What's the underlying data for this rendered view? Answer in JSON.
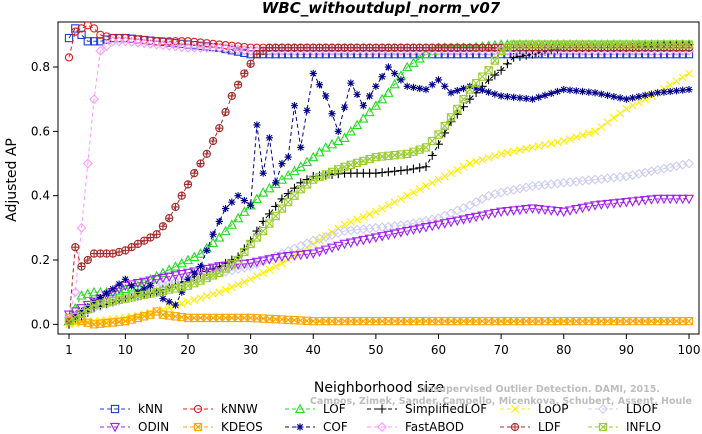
{
  "chart_data": {
    "type": "line",
    "title": "WBC_withoutdupl_norm_v07",
    "xlabel": "Neighborhood size",
    "ylabel": "Adjusted AP",
    "xlim": [
      1,
      100
    ],
    "ylim": [
      -0.03,
      0.94
    ],
    "xticks": [
      1,
      10,
      20,
      30,
      40,
      50,
      60,
      70,
      80,
      90,
      100
    ],
    "yticks": [
      0.0,
      0.2,
      0.4,
      0.6,
      0.8
    ],
    "ytick_labels": [
      "0.0",
      "0.2",
      "0.4",
      "0.6",
      "0.8"
    ],
    "grid": false,
    "legend_position": "bottom",
    "watermark": [
      "Unsupervised Outlier Detection. DAMI, 2015.",
      "Campos, Zimek, Sander, Campello, Micenkova, Schubert, Assent, Houle"
    ],
    "series": [
      {
        "name": "kNN",
        "color": "#1a3fd0",
        "marker": "square",
        "line": "dash",
        "points": [
          [
            1,
            0.89
          ],
          [
            2,
            0.92
          ],
          [
            3,
            0.9
          ],
          [
            4,
            0.88
          ],
          [
            6,
            0.88
          ],
          [
            8,
            0.89
          ],
          [
            10,
            0.89
          ],
          [
            15,
            0.88
          ],
          [
            20,
            0.87
          ],
          [
            25,
            0.86
          ],
          [
            30,
            0.84
          ],
          [
            40,
            0.84
          ],
          [
            50,
            0.84
          ],
          [
            60,
            0.84
          ],
          [
            70,
            0.84
          ],
          [
            80,
            0.84
          ],
          [
            90,
            0.84
          ],
          [
            100,
            0.84
          ]
        ]
      },
      {
        "name": "kNNW",
        "color": "#dd2020",
        "marker": "circle",
        "line": "dash",
        "points": [
          [
            1,
            0.83
          ],
          [
            2,
            0.91
          ],
          [
            3,
            0.92
          ],
          [
            4,
            0.93
          ],
          [
            5,
            0.92
          ],
          [
            6,
            0.9
          ],
          [
            8,
            0.89
          ],
          [
            10,
            0.89
          ],
          [
            15,
            0.88
          ],
          [
            20,
            0.88
          ],
          [
            25,
            0.87
          ],
          [
            30,
            0.86
          ],
          [
            40,
            0.86
          ],
          [
            50,
            0.86
          ],
          [
            60,
            0.86
          ],
          [
            70,
            0.86
          ],
          [
            80,
            0.86
          ],
          [
            90,
            0.86
          ],
          [
            100,
            0.86
          ]
        ]
      },
      {
        "name": "LOF",
        "color": "#22dd22",
        "marker": "triangle-up",
        "line": "dash",
        "points": [
          [
            1,
            0.01
          ],
          [
            3,
            0.09
          ],
          [
            5,
            0.1
          ],
          [
            8,
            0.1
          ],
          [
            10,
            0.11
          ],
          [
            12,
            0.12
          ],
          [
            15,
            0.15
          ],
          [
            18,
            0.18
          ],
          [
            20,
            0.2
          ],
          [
            22,
            0.22
          ],
          [
            25,
            0.27
          ],
          [
            28,
            0.33
          ],
          [
            30,
            0.37
          ],
          [
            32,
            0.41
          ],
          [
            35,
            0.45
          ],
          [
            38,
            0.49
          ],
          [
            40,
            0.52
          ],
          [
            42,
            0.55
          ],
          [
            45,
            0.58
          ],
          [
            48,
            0.64
          ],
          [
            50,
            0.68
          ],
          [
            52,
            0.72
          ],
          [
            55,
            0.8
          ],
          [
            58,
            0.84
          ],
          [
            60,
            0.86
          ],
          [
            65,
            0.86
          ],
          [
            70,
            0.87
          ],
          [
            75,
            0.87
          ],
          [
            80,
            0.87
          ],
          [
            90,
            0.87
          ],
          [
            100,
            0.87
          ]
        ]
      },
      {
        "name": "SimplifiedLOF",
        "color": "#000000",
        "marker": "plus",
        "line": "dash",
        "points": [
          [
            1,
            0.0
          ],
          [
            5,
            0.05
          ],
          [
            10,
            0.08
          ],
          [
            15,
            0.1
          ],
          [
            20,
            0.14
          ],
          [
            25,
            0.18
          ],
          [
            28,
            0.21
          ],
          [
            30,
            0.26
          ],
          [
            32,
            0.32
          ],
          [
            35,
            0.39
          ],
          [
            38,
            0.44
          ],
          [
            40,
            0.46
          ],
          [
            45,
            0.47
          ],
          [
            50,
            0.47
          ],
          [
            55,
            0.48
          ],
          [
            58,
            0.49
          ],
          [
            60,
            0.56
          ],
          [
            62,
            0.63
          ],
          [
            65,
            0.7
          ],
          [
            68,
            0.76
          ],
          [
            70,
            0.79
          ],
          [
            72,
            0.83
          ],
          [
            75,
            0.84
          ],
          [
            80,
            0.86
          ],
          [
            90,
            0.86
          ],
          [
            100,
            0.87
          ]
        ]
      },
      {
        "name": "LoOP",
        "color": "#ffee00",
        "marker": "x",
        "line": "dash",
        "points": [
          [
            1,
            0.0
          ],
          [
            5,
            0.01
          ],
          [
            10,
            0.02
          ],
          [
            15,
            0.04
          ],
          [
            20,
            0.07
          ],
          [
            25,
            0.1
          ],
          [
            30,
            0.14
          ],
          [
            35,
            0.19
          ],
          [
            40,
            0.25
          ],
          [
            45,
            0.31
          ],
          [
            50,
            0.35
          ],
          [
            55,
            0.4
          ],
          [
            60,
            0.45
          ],
          [
            65,
            0.5
          ],
          [
            70,
            0.53
          ],
          [
            75,
            0.55
          ],
          [
            80,
            0.57
          ],
          [
            85,
            0.6
          ],
          [
            90,
            0.67
          ],
          [
            95,
            0.72
          ],
          [
            100,
            0.78
          ]
        ]
      },
      {
        "name": "LDOF",
        "color": "#ccccf2",
        "marker": "diamond",
        "line": "dash",
        "points": [
          [
            1,
            0.02
          ],
          [
            5,
            0.05
          ],
          [
            10,
            0.08
          ],
          [
            15,
            0.12
          ],
          [
            20,
            0.14
          ],
          [
            25,
            0.16
          ],
          [
            30,
            0.18
          ],
          [
            35,
            0.22
          ],
          [
            40,
            0.26
          ],
          [
            45,
            0.29
          ],
          [
            50,
            0.3
          ],
          [
            55,
            0.31
          ],
          [
            60,
            0.33
          ],
          [
            65,
            0.37
          ],
          [
            68,
            0.4
          ],
          [
            70,
            0.41
          ],
          [
            75,
            0.43
          ],
          [
            80,
            0.44
          ],
          [
            85,
            0.45
          ],
          [
            90,
            0.46
          ],
          [
            95,
            0.48
          ],
          [
            100,
            0.5
          ]
        ]
      },
      {
        "name": "ODIN",
        "color": "#a020f0",
        "marker": "triangle-down",
        "line": "dash",
        "points": [
          [
            1,
            0.03
          ],
          [
            5,
            0.07
          ],
          [
            10,
            0.12
          ],
          [
            15,
            0.14
          ],
          [
            20,
            0.16
          ],
          [
            25,
            0.18
          ],
          [
            30,
            0.19
          ],
          [
            35,
            0.21
          ],
          [
            40,
            0.22
          ],
          [
            45,
            0.25
          ],
          [
            50,
            0.27
          ],
          [
            55,
            0.29
          ],
          [
            60,
            0.31
          ],
          [
            65,
            0.33
          ],
          [
            70,
            0.35
          ],
          [
            75,
            0.36
          ],
          [
            80,
            0.35
          ],
          [
            85,
            0.37
          ],
          [
            90,
            0.38
          ],
          [
            95,
            0.39
          ],
          [
            100,
            0.39
          ]
        ]
      },
      {
        "name": "KDEOS",
        "color": "#ffa500",
        "marker": "square-x",
        "line": "dash",
        "points": [
          [
            1,
            0.02
          ],
          [
            3,
            0.01
          ],
          [
            5,
            0.0
          ],
          [
            10,
            0.01
          ],
          [
            12,
            0.02
          ],
          [
            14,
            0.03
          ],
          [
            15,
            0.04
          ],
          [
            16,
            0.03
          ],
          [
            20,
            0.02
          ],
          [
            25,
            0.02
          ],
          [
            30,
            0.02
          ],
          [
            40,
            0.01
          ],
          [
            50,
            0.01
          ],
          [
            60,
            0.01
          ],
          [
            70,
            0.01
          ],
          [
            80,
            0.01
          ],
          [
            90,
            0.01
          ],
          [
            100,
            0.01
          ]
        ]
      },
      {
        "name": "COF",
        "color": "#00008b",
        "marker": "star",
        "line": "dash",
        "points": [
          [
            1,
            0.01
          ],
          [
            3,
            0.04
          ],
          [
            5,
            0.07
          ],
          [
            8,
            0.11
          ],
          [
            10,
            0.14
          ],
          [
            12,
            0.1
          ],
          [
            14,
            0.12
          ],
          [
            16,
            0.08
          ],
          [
            18,
            0.06
          ],
          [
            20,
            0.14
          ],
          [
            22,
            0.18
          ],
          [
            24,
            0.28
          ],
          [
            26,
            0.36
          ],
          [
            28,
            0.4
          ],
          [
            30,
            0.37
          ],
          [
            31,
            0.62
          ],
          [
            32,
            0.47
          ],
          [
            33,
            0.58
          ],
          [
            34,
            0.44
          ],
          [
            35,
            0.5
          ],
          [
            36,
            0.52
          ],
          [
            37,
            0.68
          ],
          [
            38,
            0.55
          ],
          [
            40,
            0.78
          ],
          [
            42,
            0.71
          ],
          [
            44,
            0.6
          ],
          [
            46,
            0.75
          ],
          [
            48,
            0.68
          ],
          [
            50,
            0.74
          ],
          [
            52,
            0.8
          ],
          [
            55,
            0.74
          ],
          [
            58,
            0.73
          ],
          [
            60,
            0.76
          ],
          [
            62,
            0.72
          ],
          [
            65,
            0.74
          ],
          [
            70,
            0.71
          ],
          [
            75,
            0.7
          ],
          [
            80,
            0.73
          ],
          [
            85,
            0.72
          ],
          [
            90,
            0.7
          ],
          [
            95,
            0.72
          ],
          [
            100,
            0.73
          ]
        ]
      },
      {
        "name": "FastABOD",
        "color": "#ff9aff",
        "marker": "diamond",
        "line": "dash",
        "points": [
          [
            1,
            0.02
          ],
          [
            2,
            0.1
          ],
          [
            3,
            0.3
          ],
          [
            4,
            0.5
          ],
          [
            5,
            0.7
          ],
          [
            6,
            0.85
          ],
          [
            8,
            0.88
          ],
          [
            10,
            0.88
          ],
          [
            15,
            0.87
          ],
          [
            20,
            0.86
          ],
          [
            25,
            0.86
          ],
          [
            30,
            0.85
          ],
          [
            40,
            0.85
          ],
          [
            50,
            0.85
          ],
          [
            60,
            0.85
          ],
          [
            70,
            0.85
          ],
          [
            80,
            0.85
          ],
          [
            90,
            0.85
          ],
          [
            100,
            0.85
          ]
        ]
      },
      {
        "name": "LDF",
        "color": "#a52a2a",
        "marker": "circle-plus",
        "line": "dash",
        "points": [
          [
            1,
            0.01
          ],
          [
            2,
            0.24
          ],
          [
            3,
            0.18
          ],
          [
            4,
            0.2
          ],
          [
            5,
            0.22
          ],
          [
            8,
            0.22
          ],
          [
            10,
            0.23
          ],
          [
            12,
            0.25
          ],
          [
            15,
            0.28
          ],
          [
            17,
            0.33
          ],
          [
            19,
            0.4
          ],
          [
            21,
            0.47
          ],
          [
            23,
            0.53
          ],
          [
            25,
            0.61
          ],
          [
            27,
            0.71
          ],
          [
            29,
            0.78
          ],
          [
            31,
            0.84
          ],
          [
            33,
            0.86
          ],
          [
            40,
            0.86
          ],
          [
            50,
            0.86
          ],
          [
            60,
            0.86
          ],
          [
            70,
            0.86
          ],
          [
            80,
            0.86
          ],
          [
            90,
            0.86
          ],
          [
            100,
            0.86
          ]
        ]
      },
      {
        "name": "INFLO",
        "color": "#9acd32",
        "marker": "square-x",
        "line": "dash",
        "points": [
          [
            1,
            0.01
          ],
          [
            5,
            0.06
          ],
          [
            10,
            0.08
          ],
          [
            15,
            0.1
          ],
          [
            20,
            0.12
          ],
          [
            25,
            0.16
          ],
          [
            28,
            0.2
          ],
          [
            30,
            0.25
          ],
          [
            32,
            0.29
          ],
          [
            35,
            0.36
          ],
          [
            38,
            0.42
          ],
          [
            40,
            0.45
          ],
          [
            45,
            0.49
          ],
          [
            50,
            0.52
          ],
          [
            55,
            0.53
          ],
          [
            58,
            0.55
          ],
          [
            60,
            0.59
          ],
          [
            63,
            0.67
          ],
          [
            65,
            0.73
          ],
          [
            68,
            0.79
          ],
          [
            70,
            0.85
          ],
          [
            72,
            0.87
          ],
          [
            75,
            0.87
          ],
          [
            80,
            0.87
          ],
          [
            90,
            0.87
          ],
          [
            100,
            0.87
          ]
        ]
      }
    ],
    "legend_order": [
      [
        "kNN",
        "kNNW",
        "LOF",
        "SimplifiedLOF",
        "LoOP",
        "LDOF"
      ],
      [
        "ODIN",
        "KDEOS",
        "COF",
        "FastABOD",
        "LDF",
        "INFLO"
      ]
    ]
  }
}
